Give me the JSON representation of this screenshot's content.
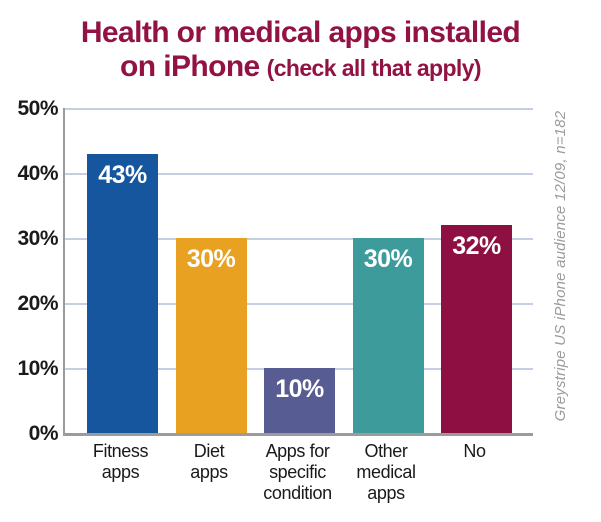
{
  "title": {
    "line1": "Health or medical apps installed",
    "line2_main": "on iPhone",
    "line2_note": "(check all that apply)"
  },
  "source_note": "Greystripe US iPhone audience 12/09, n=182",
  "chart_data": {
    "type": "bar",
    "title": "Health or medical apps installed on iPhone (check all that apply)",
    "categories": [
      "Fitness apps",
      "Diet apps",
      "Apps for specific condition",
      "Other medical apps",
      "No"
    ],
    "category_lines": [
      [
        "Fitness",
        "apps"
      ],
      [
        "Diet",
        "apps"
      ],
      [
        "Apps for",
        "specific",
        "condition"
      ],
      [
        "Other",
        "medical",
        "apps"
      ],
      [
        "No"
      ]
    ],
    "values": [
      43,
      30,
      10,
      30,
      32
    ],
    "value_labels": [
      "43%",
      "30%",
      "10%",
      "30%",
      "32%"
    ],
    "bar_colors": [
      "#15569E",
      "#E8A120",
      "#575C93",
      "#3D9B9B",
      "#8E0F41"
    ],
    "xlabel": "",
    "ylabel": "",
    "ylim": [
      0,
      50
    ],
    "yticks": [
      0,
      10,
      20,
      30,
      40,
      50
    ],
    "ytick_labels": [
      "0%",
      "10%",
      "20%",
      "30%",
      "40%",
      "50%"
    ],
    "grid": "horizontal",
    "legend": "none",
    "source": "Greystripe US iPhone audience 12/09, n=182",
    "colors": {
      "title": "#911243",
      "gridline": "#C5CFE2",
      "axis": "#9B9B9B",
      "tick_label": "#1A1A1A",
      "value_label": "#FFFFFF"
    }
  }
}
